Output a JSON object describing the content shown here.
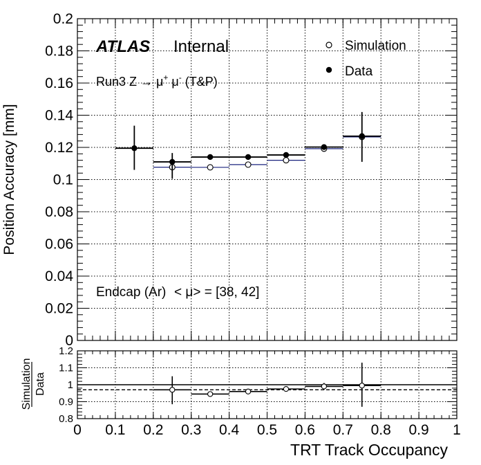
{
  "chart_data": [
    {
      "type": "scatter",
      "panel": "main",
      "xlabel": "TRT Track Occupancy",
      "ylabel": "Position Accuracy [mm]",
      "xlim": [
        0,
        1
      ],
      "ylim": [
        0,
        0.2
      ],
      "grid": true,
      "legend_position": "top-right",
      "x_ticks": [
        "0",
        "0.1",
        "0.2",
        "0.3",
        "0.4",
        "0.5",
        "0.6",
        "0.7",
        "0.8",
        "0.9",
        "1"
      ],
      "y_ticks": [
        "0",
        "0.02",
        "0.04",
        "0.06",
        "0.08",
        "0.1",
        "0.12",
        "0.14",
        "0.16",
        "0.18",
        "0.2"
      ],
      "annotations": {
        "atlas": "ATLAS",
        "internal": "Internal",
        "run_pre": "Run3 Z ",
        "run_arrow": "→",
        "run_mu1": " μ",
        "run_plus": "+",
        "run_mu2": " μ",
        "run_minus": "-",
        "run_post": " (T&P)",
        "region": "Endcap (Ar)",
        "pileup": "< μ> = [38, 42]"
      },
      "series": [
        {
          "name": "Simulation",
          "marker": "open-circle",
          "color": "#1a237e",
          "points": [
            {
              "x": 0.25,
              "xlo": 0.2,
              "xhi": 0.3,
              "y": 0.1077,
              "ylo": 0.1077,
              "yhi": 0.1077
            },
            {
              "x": 0.35,
              "xlo": 0.3,
              "xhi": 0.4,
              "y": 0.1076,
              "ylo": 0.1076,
              "yhi": 0.1076
            },
            {
              "x": 0.45,
              "xlo": 0.4,
              "xhi": 0.5,
              "y": 0.1093,
              "ylo": 0.1093,
              "yhi": 0.1093
            },
            {
              "x": 0.55,
              "xlo": 0.5,
              "xhi": 0.6,
              "y": 0.112,
              "ylo": 0.112,
              "yhi": 0.112
            },
            {
              "x": 0.65,
              "xlo": 0.6,
              "xhi": 0.7,
              "y": 0.1192,
              "ylo": 0.1172,
              "yhi": 0.1212
            },
            {
              "x": 0.75,
              "xlo": 0.7,
              "xhi": 0.8,
              "y": 0.1265,
              "ylo": 0.1245,
              "yhi": 0.1285
            }
          ]
        },
        {
          "name": "Data",
          "marker": "filled-circle",
          "color": "#000000",
          "points": [
            {
              "x": 0.15,
              "xlo": 0.1,
              "xhi": 0.2,
              "y": 0.1195,
              "ylo": 0.106,
              "yhi": 0.1335
            },
            {
              "x": 0.25,
              "xlo": 0.2,
              "xhi": 0.3,
              "y": 0.111,
              "ylo": 0.1005,
              "yhi": 0.1165
            },
            {
              "x": 0.35,
              "xlo": 0.3,
              "xhi": 0.4,
              "y": 0.114,
              "ylo": 0.1135,
              "yhi": 0.1145
            },
            {
              "x": 0.45,
              "xlo": 0.4,
              "xhi": 0.5,
              "y": 0.114,
              "ylo": 0.1135,
              "yhi": 0.1145
            },
            {
              "x": 0.55,
              "xlo": 0.5,
              "xhi": 0.6,
              "y": 0.1153,
              "ylo": 0.1145,
              "yhi": 0.1161
            },
            {
              "x": 0.65,
              "xlo": 0.6,
              "xhi": 0.7,
              "y": 0.1202,
              "ylo": 0.1187,
              "yhi": 0.1217
            },
            {
              "x": 0.75,
              "xlo": 0.7,
              "xhi": 0.8,
              "y": 0.127,
              "ylo": 0.111,
              "yhi": 0.142
            }
          ]
        }
      ]
    },
    {
      "type": "scatter",
      "panel": "ratio",
      "xlabel": "TRT Track Occupancy",
      "ylabel_numerator": "Simulation",
      "ylabel_denominator": "Data",
      "xlim": [
        0,
        1
      ],
      "ylim": [
        0.8,
        1.2
      ],
      "grid": true,
      "y_ticks": [
        "0.8",
        "0.9",
        "1",
        "1.1",
        "1.2"
      ],
      "reference_line": 1.0,
      "mean_line": 0.97,
      "series": [
        {
          "name": "Simulation/Data",
          "marker": "open-circle",
          "color": "#000000",
          "points": [
            {
              "x": 0.25,
              "xlo": 0.2,
              "xhi": 0.3,
              "y": 0.97,
              "ylo": 0.885,
              "yhi": 1.05
            },
            {
              "x": 0.35,
              "xlo": 0.3,
              "xhi": 0.4,
              "y": 0.945,
              "ylo": 0.93,
              "yhi": 0.96
            },
            {
              "x": 0.45,
              "xlo": 0.4,
              "xhi": 0.5,
              "y": 0.96,
              "ylo": 0.96,
              "yhi": 0.96
            },
            {
              "x": 0.55,
              "xlo": 0.5,
              "xhi": 0.6,
              "y": 0.975,
              "ylo": 0.975,
              "yhi": 0.975
            },
            {
              "x": 0.65,
              "xlo": 0.6,
              "xhi": 0.7,
              "y": 0.99,
              "ylo": 0.97,
              "yhi": 1.01
            },
            {
              "x": 0.75,
              "xlo": 0.7,
              "xhi": 0.8,
              "y": 0.995,
              "ylo": 0.87,
              "yhi": 1.13
            }
          ]
        }
      ]
    }
  ]
}
